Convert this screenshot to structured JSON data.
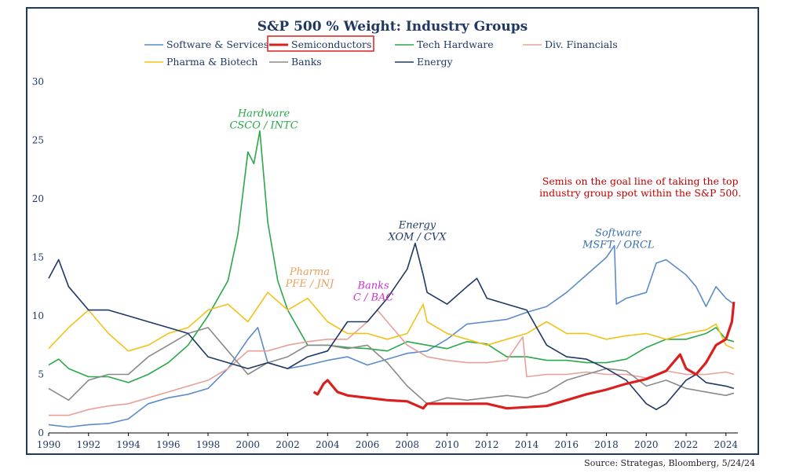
{
  "chart_data": {
    "type": "line",
    "title": "S&P 500 % Weight: Industry Groups",
    "xlabel": "",
    "ylabel": "",
    "xlim": [
      1990,
      2024.6
    ],
    "ylim": [
      0,
      30
    ],
    "x_ticks": [
      "1990",
      "1992",
      "1994",
      "1996",
      "1998",
      "2000",
      "2002",
      "2004",
      "2006",
      "2008",
      "2010",
      "2012",
      "2014",
      "2016",
      "2018",
      "2020",
      "2022",
      "2024"
    ],
    "y_ticks": [
      "0",
      "5",
      "10",
      "15",
      "20",
      "25",
      "30"
    ],
    "grid": false,
    "legend_position": "top",
    "legend": [
      {
        "name": "Software & Services",
        "color": "#5b8cc9"
      },
      {
        "name": "Semiconductors",
        "color": "#d9201f",
        "highlight": true
      },
      {
        "name": "Tech Hardware",
        "color": "#2aa84a"
      },
      {
        "name": "Div. Financials",
        "color": "#e8a09a"
      },
      {
        "name": "Pharma & Biotech",
        "color": "#f2c21b"
      },
      {
        "name": "Banks",
        "color": "#8a8a8a"
      },
      {
        "name": "Energy",
        "color": "#1f3864"
      }
    ],
    "series": [
      {
        "name": "Software & Services",
        "color": "#5b8cc9",
        "x": [
          1990,
          1991,
          1992,
          1993,
          1994,
          1995,
          1996,
          1997,
          1998,
          1999,
          2000,
          2000.5,
          2001,
          2002,
          2003,
          2004,
          2005,
          2006,
          2007,
          2008,
          2009,
          2010,
          2011,
          2012,
          2013,
          2014,
          2015,
          2016,
          2017,
          2018,
          2018.4,
          2018.5,
          2019,
          2020,
          2020.5,
          2021,
          2022,
          2022.5,
          2023,
          2023.5,
          2024,
          2024.4
        ],
        "y": [
          0.7,
          0.5,
          0.7,
          0.8,
          1.2,
          2.5,
          3,
          3.3,
          3.8,
          5.5,
          8,
          9,
          6,
          5.5,
          5.8,
          6.2,
          6.5,
          5.8,
          6.3,
          6.8,
          7,
          8,
          9.3,
          9.5,
          9.7,
          10.3,
          10.8,
          12,
          13.5,
          15,
          16,
          11,
          11.5,
          12,
          14.5,
          14.8,
          13.5,
          12.5,
          10.8,
          12.5,
          11.5,
          11
        ]
      },
      {
        "name": "Semiconductors",
        "color": "#d9201f",
        "x": [
          2003.3,
          2003.5,
          2003.8,
          2004,
          2004.5,
          2005,
          2006,
          2007,
          2008,
          2008.8,
          2009,
          2010,
          2011,
          2012,
          2013,
          2014,
          2015,
          2016,
          2017,
          2018,
          2019,
          2020,
          2021,
          2021.7,
          2022,
          2022.5,
          2023,
          2023.5,
          2024,
          2024.3,
          2024.4
        ],
        "y": [
          3.5,
          3.3,
          4.2,
          4.5,
          3.5,
          3.2,
          3,
          2.8,
          2.7,
          2.1,
          2.5,
          2.5,
          2.5,
          2.5,
          2.1,
          2.2,
          2.3,
          2.8,
          3.3,
          3.7,
          4.2,
          4.6,
          5.3,
          6.7,
          5.5,
          5,
          6,
          7.5,
          8,
          9.5,
          11.2
        ]
      },
      {
        "name": "Tech Hardware",
        "color": "#2aa84a",
        "x": [
          1990,
          1990.5,
          1991,
          1992,
          1993,
          1994,
          1995,
          1996,
          1997,
          1998,
          1999,
          1999.5,
          2000,
          2000.3,
          2000.6,
          2001,
          2001.5,
          2002,
          2003,
          2004,
          2005,
          2006,
          2007,
          2008,
          2009,
          2010,
          2011,
          2012,
          2013,
          2014,
          2015,
          2016,
          2017,
          2018,
          2019,
          2020,
          2021,
          2022,
          2023,
          2023.5,
          2024,
          2024.4
        ],
        "y": [
          5.8,
          6.3,
          5.5,
          4.8,
          4.8,
          4.3,
          5,
          6,
          7.5,
          10,
          13,
          17,
          24,
          23,
          25.8,
          18,
          13,
          10.5,
          7.5,
          7.5,
          7.3,
          7.2,
          7,
          7.8,
          7.5,
          7.2,
          7.8,
          7.6,
          6.5,
          6.5,
          6.2,
          6.2,
          6,
          6,
          6.3,
          7.3,
          8,
          8,
          8.5,
          9,
          8,
          7.8
        ]
      },
      {
        "name": "Div. Financials",
        "color": "#e8a09a",
        "x": [
          1990,
          1991,
          1992,
          1993,
          1994,
          1995,
          1996,
          1997,
          1998,
          1999,
          2000,
          2001,
          2002,
          2003,
          2004,
          2005,
          2006,
          2006.5,
          2007,
          2008,
          2009,
          2010,
          2011,
          2012,
          2013,
          2013.8,
          2014,
          2015,
          2016,
          2017,
          2018,
          2019,
          2020,
          2021,
          2022,
          2023,
          2024,
          2024.4
        ],
        "y": [
          1.5,
          1.5,
          2,
          2.3,
          2.5,
          3,
          3.5,
          4,
          4.5,
          5.5,
          7,
          7,
          7.5,
          7.8,
          8,
          8,
          9.5,
          10.5,
          9.5,
          7.5,
          6.5,
          6.2,
          6,
          6,
          6.2,
          8.2,
          4.8,
          5,
          5,
          5.2,
          5,
          5,
          4.7,
          5.3,
          5,
          5,
          5.2,
          5
        ]
      },
      {
        "name": "Pharma & Biotech",
        "color": "#f2c21b",
        "x": [
          1990,
          1991,
          1992,
          1993,
          1994,
          1995,
          1996,
          1997,
          1998,
          1999,
          2000,
          2001,
          2002,
          2003,
          2004,
          2005,
          2006,
          2007,
          2008,
          2008.8,
          2009,
          2010,
          2011,
          2012,
          2013,
          2014,
          2015,
          2016,
          2017,
          2018,
          2019,
          2020,
          2021,
          2022,
          2023,
          2023.5,
          2024,
          2024.4
        ],
        "y": [
          7.2,
          9,
          10.5,
          8.5,
          7,
          7.5,
          8.5,
          9,
          10.5,
          11,
          9.5,
          12,
          10.5,
          11.5,
          9.5,
          8.5,
          8.5,
          8,
          8.5,
          11,
          9.5,
          8.5,
          8,
          7.5,
          8,
          8.5,
          9.5,
          8.5,
          8.5,
          8,
          8.3,
          8.5,
          8,
          8.5,
          8.8,
          9.3,
          7.5,
          7.2
        ]
      },
      {
        "name": "Banks",
        "color": "#8a8a8a",
        "x": [
          1990,
          1991,
          1992,
          1993,
          1994,
          1995,
          1996,
          1997,
          1998,
          1999,
          2000,
          2001,
          2002,
          2003,
          2004,
          2005,
          2006,
          2007,
          2008,
          2009,
          2010,
          2011,
          2012,
          2013,
          2014,
          2015,
          2016,
          2017,
          2018,
          2019,
          2020,
          2021,
          2022,
          2023,
          2024,
          2024.4
        ],
        "y": [
          3.8,
          2.8,
          4.5,
          5,
          5,
          6.5,
          7.5,
          8.5,
          9,
          7,
          5,
          6,
          6.5,
          7.5,
          7.5,
          7.2,
          7.5,
          6,
          4,
          2.5,
          3,
          2.8,
          3,
          3.2,
          3,
          3.5,
          4.5,
          5,
          5.5,
          5.3,
          4,
          4.5,
          3.8,
          3.5,
          3.2,
          3.4
        ]
      },
      {
        "name": "Energy",
        "color": "#1f3864",
        "x": [
          1990,
          1990.5,
          1991,
          1992,
          1993,
          1994,
          1995,
          1996,
          1997,
          1998,
          1999,
          2000,
          2001,
          2002,
          2003,
          2004,
          2005,
          2006,
          2007,
          2008,
          2008.4,
          2008.8,
          2009,
          2010,
          2011,
          2011.5,
          2012,
          2013,
          2014,
          2015,
          2016,
          2017,
          2018,
          2019,
          2020,
          2020.5,
          2021,
          2022,
          2022.5,
          2023,
          2024,
          2024.4
        ],
        "y": [
          13.2,
          14.8,
          12.5,
          10.5,
          10.5,
          10,
          9.5,
          9,
          8.5,
          6.5,
          6,
          5.5,
          6,
          5.5,
          6.5,
          7,
          9.5,
          9.5,
          11.5,
          14,
          16.2,
          13.5,
          12,
          11,
          12.5,
          13.2,
          11.5,
          11,
          10.5,
          7.5,
          6.5,
          6.3,
          5.5,
          4.5,
          2.5,
          2,
          2.5,
          4.5,
          5,
          4.3,
          4,
          3.8
        ]
      }
    ],
    "annotations": [
      {
        "lines": [
          "Hardware",
          "CSCO / INTC"
        ],
        "color": "#2aa84a",
        "x": 2000.8,
        "y": 27
      },
      {
        "lines": [
          "Pharma",
          "PFE / JNJ"
        ],
        "color": "#e8a05a",
        "x": 2003.1,
        "y": 13.5
      },
      {
        "lines": [
          "Banks",
          "C / BAC"
        ],
        "color": "#cc33cc",
        "x": 2006.3,
        "y": 12.3
      },
      {
        "lines": [
          "Energy",
          "XOM / CVX"
        ],
        "color": "#1f3864",
        "x": 2008.5,
        "y": 17.5
      },
      {
        "lines": [
          "Software",
          "MSFT / ORCL"
        ],
        "color": "#3a6fb0",
        "x": 2018.6,
        "y": 16.8
      },
      {
        "lines": [
          "Semis on the goal line of taking the top",
          "industry group spot within the S&P 500."
        ],
        "color": "#c00000",
        "x": 2019.7,
        "y": 21.2
      }
    ]
  },
  "footer": {
    "source": "Source: Strategas, Bloomberg, 5/24/24"
  }
}
